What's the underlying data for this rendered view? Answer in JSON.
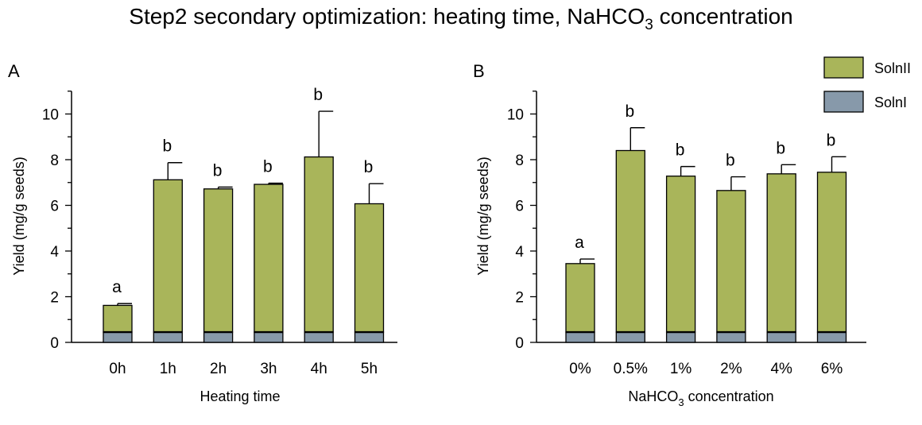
{
  "figure_title": {
    "text": "Step2 secondary optimization: heating time, NaHCO",
    "subscript": "3",
    "suffix": " concentration"
  },
  "legend": [
    {
      "label": "SolnII",
      "color": "#a9b55a"
    },
    {
      "label": "SolnI",
      "color": "#8799aa"
    }
  ],
  "chart_data": [
    {
      "panel": "A",
      "type": "bar",
      "stacked": true,
      "categories": [
        "0h",
        "1h",
        "2h",
        "3h",
        "4h",
        "5h"
      ],
      "series": [
        {
          "name": "SolnI",
          "values": [
            0.45,
            0.45,
            0.45,
            0.45,
            0.45,
            0.45
          ],
          "color": "#8799aa"
        },
        {
          "name": "SolnII",
          "values": [
            1.17,
            6.67,
            6.27,
            6.47,
            7.67,
            5.62
          ],
          "color": "#a9b55a"
        }
      ],
      "totals": [
        1.62,
        7.12,
        6.72,
        6.92,
        8.12,
        6.07
      ],
      "error_up": [
        0.08,
        0.75,
        0.08,
        0.05,
        2.0,
        0.88
      ],
      "significance_labels": [
        "a",
        "b",
        "b",
        "b",
        "b",
        "b"
      ],
      "ylabel": "Yield (mg/g seeds)",
      "xlabel": {
        "text": "Heating time",
        "subscript": "",
        "suffix": ""
      },
      "ylim": [
        0,
        11
      ],
      "yticks": [
        0,
        2,
        4,
        6,
        8,
        10
      ],
      "grid": false
    },
    {
      "panel": "B",
      "type": "bar",
      "stacked": true,
      "categories": [
        "0%",
        "0.5%",
        "1%",
        "2%",
        "4%",
        "6%"
      ],
      "series": [
        {
          "name": "SolnI",
          "values": [
            0.45,
            0.45,
            0.45,
            0.45,
            0.45,
            0.45
          ],
          "color": "#8799aa"
        },
        {
          "name": "SolnII",
          "values": [
            3.0,
            7.95,
            6.83,
            6.2,
            6.93,
            7.0
          ],
          "color": "#a9b55a"
        }
      ],
      "totals": [
        3.45,
        8.4,
        7.28,
        6.65,
        7.38,
        7.45
      ],
      "error_up": [
        0.2,
        1.0,
        0.42,
        0.6,
        0.4,
        0.68
      ],
      "significance_labels": [
        "a",
        "b",
        "b",
        "b",
        "b",
        "b"
      ],
      "ylabel": "Yield (mg/g seeds)",
      "xlabel": {
        "text": "NaHCO",
        "subscript": "3",
        "suffix": " concentration"
      },
      "ylim": [
        0,
        11
      ],
      "yticks": [
        0,
        2,
        4,
        6,
        8,
        10
      ],
      "grid": false
    }
  ]
}
